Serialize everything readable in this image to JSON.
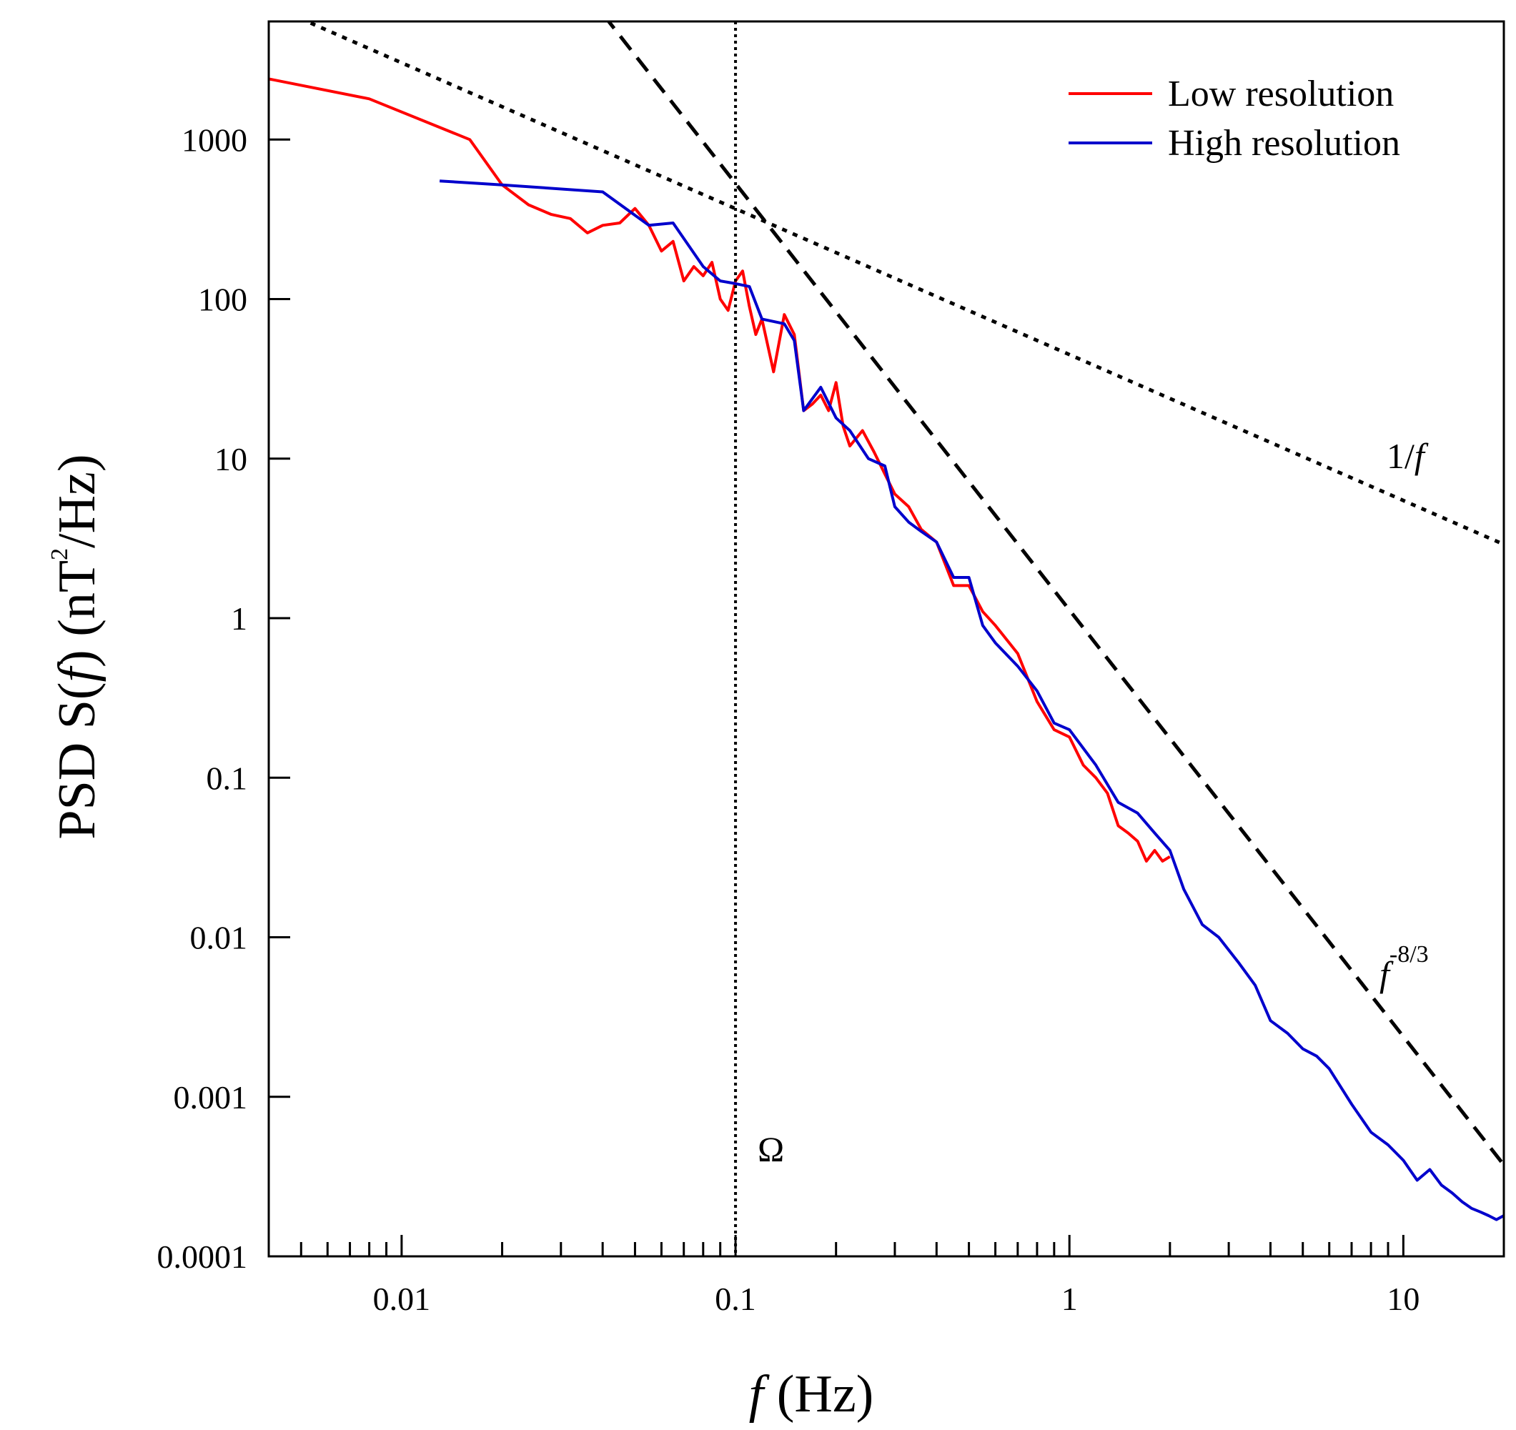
{
  "chart_data": {
    "type": "line",
    "title": "",
    "xlabel": {
      "var": "f",
      "unit": " (Hz)"
    },
    "ylabel": {
      "prefix": "PSD S(",
      "var": "f",
      "suffix": ") (nT",
      "exp": "2",
      "tail": "/Hz)"
    },
    "xscale": "log",
    "yscale": "log",
    "xlim": [
      0.004,
      20
    ],
    "ylim": [
      0.0001,
      5500
    ],
    "x_ticks": [
      {
        "value": 0.01,
        "label": "0.01"
      },
      {
        "value": 0.1,
        "label": "0.1"
      },
      {
        "value": 1,
        "label": "1"
      },
      {
        "value": 10,
        "label": "10"
      }
    ],
    "y_ticks": [
      {
        "value": 0.0001,
        "label": "0.0001"
      },
      {
        "value": 0.001,
        "label": "0.001"
      },
      {
        "value": 0.01,
        "label": "0.01"
      },
      {
        "value": 0.1,
        "label": "0.1"
      },
      {
        "value": 1,
        "label": "1"
      },
      {
        "value": 10,
        "label": "10"
      },
      {
        "value": 100,
        "label": "100"
      },
      {
        "value": 1000,
        "label": "1000"
      }
    ],
    "grid": false,
    "legend": {
      "position": "top-right"
    },
    "series": [
      {
        "name": "Low resolution",
        "color": "#ff0000",
        "x": [
          0.004,
          0.008,
          0.016,
          0.02,
          0.024,
          0.028,
          0.032,
          0.036,
          0.04,
          0.045,
          0.05,
          0.055,
          0.06,
          0.065,
          0.07,
          0.075,
          0.08,
          0.085,
          0.09,
          0.095,
          0.1,
          0.105,
          0.11,
          0.115,
          0.12,
          0.13,
          0.14,
          0.15,
          0.16,
          0.17,
          0.18,
          0.19,
          0.2,
          0.21,
          0.22,
          0.24,
          0.26,
          0.28,
          0.3,
          0.33,
          0.36,
          0.4,
          0.45,
          0.5,
          0.55,
          0.6,
          0.7,
          0.8,
          0.9,
          1.0,
          1.1,
          1.2,
          1.3,
          1.4,
          1.5,
          1.6,
          1.7,
          1.8,
          1.9,
          2.0
        ],
        "y": [
          2400,
          1800,
          1000,
          520,
          390,
          340,
          320,
          260,
          290,
          300,
          370,
          290,
          200,
          230,
          130,
          160,
          140,
          170,
          100,
          85,
          130,
          150,
          90,
          60,
          75,
          35,
          80,
          60,
          20,
          22,
          25,
          20,
          30,
          16,
          12,
          15,
          11,
          8,
          6,
          5,
          3.6,
          3.0,
          1.6,
          1.6,
          1.1,
          0.9,
          0.6,
          0.3,
          0.2,
          0.18,
          0.12,
          0.1,
          0.08,
          0.05,
          0.045,
          0.04,
          0.03,
          0.035,
          0.03,
          0.032
        ]
      },
      {
        "name": "High resolution",
        "color": "#0000cc",
        "x": [
          0.013,
          0.02,
          0.04,
          0.055,
          0.065,
          0.08,
          0.09,
          0.1,
          0.11,
          0.12,
          0.14,
          0.15,
          0.16,
          0.18,
          0.2,
          0.22,
          0.25,
          0.28,
          0.3,
          0.33,
          0.36,
          0.4,
          0.45,
          0.5,
          0.55,
          0.6,
          0.7,
          0.8,
          0.9,
          1.0,
          1.2,
          1.4,
          1.6,
          1.8,
          2.0,
          2.2,
          2.5,
          2.8,
          3.2,
          3.6,
          4.0,
          4.5,
          5.0,
          5.5,
          6.0,
          7.0,
          8.0,
          9.0,
          10.0,
          11.0,
          12.0,
          13.0,
          14.0,
          15.0,
          16.0,
          17.0,
          18.0,
          19.0,
          20.0
        ],
        "y": [
          550,
          520,
          470,
          290,
          300,
          160,
          130,
          125,
          120,
          75,
          70,
          55,
          20,
          28,
          18,
          15,
          10,
          9,
          5,
          4,
          3.5,
          3.0,
          1.8,
          1.8,
          0.9,
          0.7,
          0.5,
          0.35,
          0.22,
          0.2,
          0.12,
          0.07,
          0.06,
          0.045,
          0.035,
          0.02,
          0.012,
          0.01,
          0.007,
          0.005,
          0.003,
          0.0025,
          0.002,
          0.0018,
          0.0015,
          0.0009,
          0.0006,
          0.0005,
          0.0004,
          0.0003,
          0.00035,
          0.00028,
          0.00025,
          0.00022,
          0.0002,
          0.00019,
          0.00018,
          0.00017,
          0.00018
        ]
      }
    ],
    "reference_lines": [
      {
        "label_var": "f",
        "label_prefix": "1/",
        "label_exp": "",
        "style": "dotted",
        "x": [
          0.004,
          20
        ],
        "y": [
          7000,
          2.9
        ]
      },
      {
        "label_var": "f",
        "label_prefix": "",
        "label_exp": "-8/3",
        "style": "dashed",
        "x": [
          0.004,
          20
        ],
        "y": [
          2900000,
          0.000374
        ]
      }
    ],
    "vertical_line": {
      "x": 0.1,
      "label": "Ω",
      "style": "dotted"
    }
  }
}
